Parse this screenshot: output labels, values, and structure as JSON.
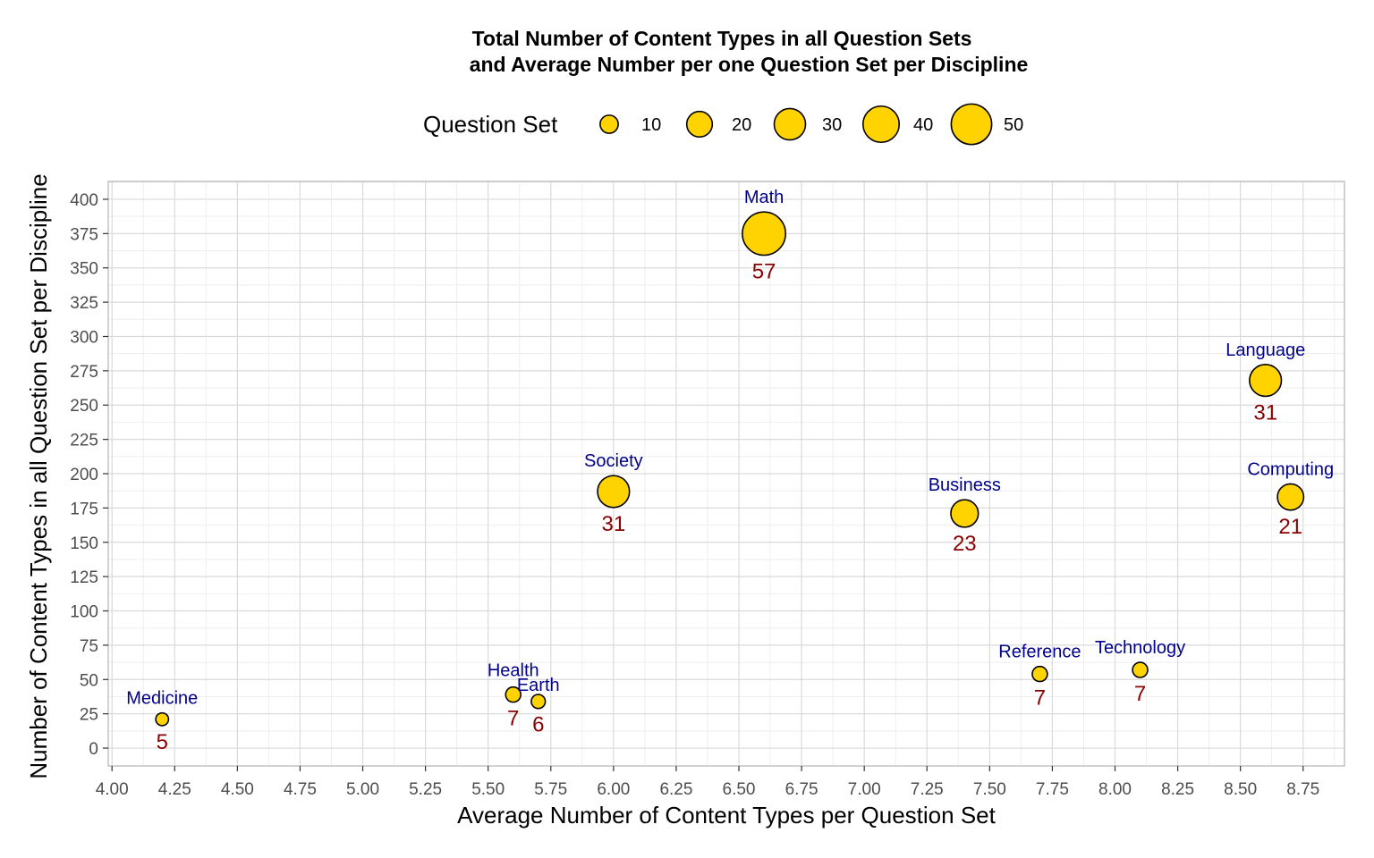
{
  "chart_data": {
    "type": "scatter",
    "title": "Total Number of Content Types in all Question Sets",
    "subtitle": "and Average Number per one Question Set per Discipline",
    "xlabel": "Average Number of Content Types per Question Set",
    "ylabel": "Number of Content Types in all Question Set per Discipline",
    "xlim": [
      3.985,
      8.915
    ],
    "ylim": [
      -13,
      413
    ],
    "x_ticks": [
      4.0,
      4.25,
      4.5,
      4.75,
      5.0,
      5.25,
      5.5,
      5.75,
      6.0,
      6.25,
      6.5,
      6.75,
      7.0,
      7.25,
      7.5,
      7.75,
      8.0,
      8.25,
      8.5,
      8.75
    ],
    "x_tick_labels": [
      "4.00",
      "4.25",
      "4.50",
      "4.75",
      "5.00",
      "5.25",
      "5.50",
      "5.75",
      "6.00",
      "6.25",
      "6.50",
      "6.75",
      "7.00",
      "7.25",
      "7.50",
      "7.75",
      "8.00",
      "8.25",
      "8.50",
      "8.75"
    ],
    "y_ticks": [
      0,
      25,
      50,
      75,
      100,
      125,
      150,
      175,
      200,
      225,
      250,
      275,
      300,
      325,
      350,
      375,
      400
    ],
    "y_tick_labels": [
      "0",
      "25",
      "50",
      "75",
      "100",
      "125",
      "150",
      "175",
      "200",
      "225",
      "250",
      "275",
      "300",
      "325",
      "350",
      "375",
      "400"
    ],
    "grid": true,
    "size_variable": "Question Set",
    "legend": {
      "title": "Question Set",
      "placement": "top",
      "values": [
        10,
        20,
        30,
        40,
        50
      ],
      "labels": [
        "10",
        "20",
        "30",
        "40",
        "50"
      ]
    },
    "points": [
      {
        "label": "Medicine",
        "x": 4.2,
        "y": 21,
        "size": 5,
        "size_label": "5"
      },
      {
        "label": "Health",
        "x": 5.6,
        "y": 39,
        "size": 7,
        "size_label": "7"
      },
      {
        "label": "Earth",
        "x": 5.7,
        "y": 34,
        "size": 6,
        "size_label": "6"
      },
      {
        "label": "Society",
        "x": 6.0,
        "y": 187,
        "size": 31,
        "size_label": "31"
      },
      {
        "label": "Math",
        "x": 6.6,
        "y": 375,
        "size": 57,
        "size_label": "57"
      },
      {
        "label": "Business",
        "x": 7.4,
        "y": 171,
        "size": 23,
        "size_label": "23"
      },
      {
        "label": "Reference",
        "x": 7.7,
        "y": 54,
        "size": 7,
        "size_label": "7"
      },
      {
        "label": "Technology",
        "x": 8.1,
        "y": 57,
        "size": 7,
        "size_label": "7"
      },
      {
        "label": "Language",
        "x": 8.6,
        "y": 268,
        "size": 31,
        "size_label": "31"
      },
      {
        "label": "Computing",
        "x": 8.7,
        "y": 183,
        "size": 21,
        "size_label": "21"
      }
    ],
    "colors": {
      "point_fill": "#FFD300",
      "point_stroke": "#000000",
      "point_label": "#00008B",
      "count_label": "#8B0000",
      "grid_major": "#DADADA",
      "grid_minor": "#EEEEEE",
      "panel_border": "#B3B3B3"
    }
  }
}
